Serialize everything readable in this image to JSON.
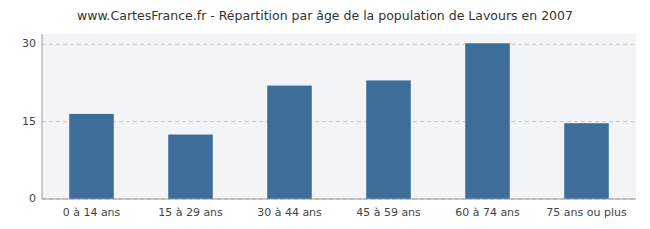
{
  "chart_data": {
    "type": "bar",
    "title": "www.CartesFrance.fr - Répartition par âge de la population de Lavours en 2007",
    "categories": [
      "0 à 14 ans",
      "15 à 29 ans",
      "30 à 44 ans",
      "45 à 59 ans",
      "60 à 74 ans",
      "75 ans ou plus"
    ],
    "values": [
      16.5,
      12.5,
      22.0,
      23.0,
      30.2,
      14.7
    ],
    "color": "#3d6e99",
    "ylim": [
      0,
      32
    ],
    "yticks": [
      0,
      15,
      30
    ],
    "grid": true
  }
}
